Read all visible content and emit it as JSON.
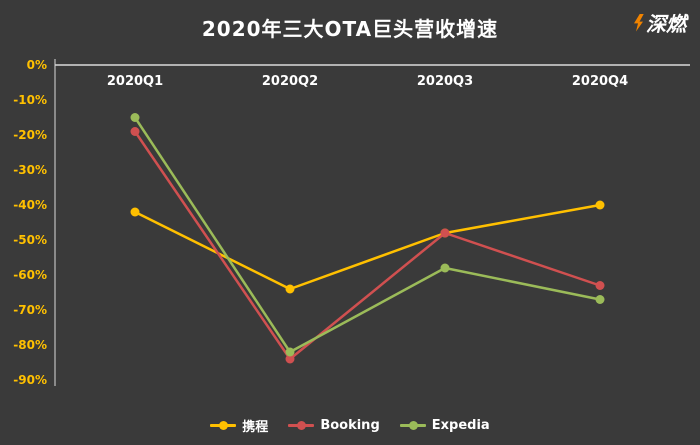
{
  "header": {
    "title": "2020年三大OTA巨头营收增速",
    "logo_text": "深燃"
  },
  "colors": {
    "background": "#3a3a3a",
    "axis": "#d9d9d9",
    "ytick": "#ffc000",
    "category_label": "#ffffff",
    "title_text": "#ffffff"
  },
  "chart_data": {
    "type": "line",
    "title": "2020年三大OTA巨头营收增速",
    "categories": [
      "2020Q1",
      "2020Q2",
      "2020Q3",
      "2020Q4"
    ],
    "series": [
      {
        "name": "携程",
        "color": "#ffc000",
        "values": [
          -42,
          -64,
          -48,
          -40
        ]
      },
      {
        "name": "Booking",
        "color": "#d05050",
        "values": [
          -19,
          -84,
          -48,
          -63
        ]
      },
      {
        "name": "Expedia",
        "color": "#9bbb59",
        "values": [
          -15,
          -82,
          -58,
          -67
        ]
      }
    ],
    "ylim": [
      -90,
      0
    ],
    "yticks": [
      0,
      -10,
      -20,
      -30,
      -40,
      -50,
      -60,
      -70,
      -80,
      -90
    ],
    "ytick_format": "{v}%",
    "grid": false,
    "legend_position": "bottom"
  }
}
